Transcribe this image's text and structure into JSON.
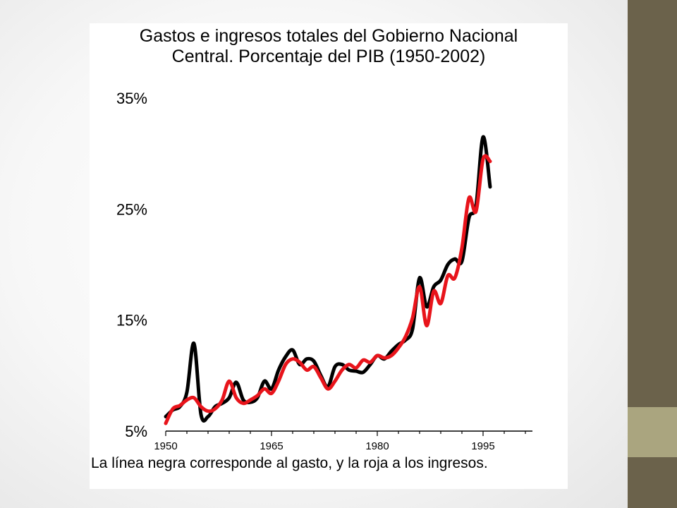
{
  "colors": {
    "sidebar": "#6b624b",
    "sidebar_accent": "#aaa57f",
    "gasto_line": "#000000",
    "ingresos_line": "#e8141b"
  },
  "chart_data": {
    "type": "line",
    "title": "Gastos e ingresos totales del Gobierno Nacional\nCentral.  Porcentaje del PIB (1950-2002)",
    "caption": "La línea negra corresponde al gasto, y la roja a los ingresos.",
    "xlabel": "",
    "ylabel": "",
    "xlim": [
      1950,
      2002
    ],
    "ylim": [
      5,
      35
    ],
    "x_ticks": [
      1950,
      1965,
      1980,
      1995
    ],
    "y_ticks": [
      {
        "value": 5,
        "label": "5%"
      },
      {
        "value": 15,
        "label": "15%"
      },
      {
        "value": 25,
        "label": "25%"
      },
      {
        "value": 35,
        "label": "35%"
      }
    ],
    "grid": false,
    "x": [
      1950,
      1951,
      1952,
      1953,
      1954,
      1955,
      1956,
      1957,
      1958,
      1959,
      1960,
      1961,
      1962,
      1963,
      1964,
      1965,
      1966,
      1967,
      1968,
      1969,
      1970,
      1971,
      1972,
      1973,
      1974,
      1975,
      1976,
      1977,
      1978,
      1979,
      1980,
      1981,
      1982,
      1983,
      1984,
      1985,
      1986,
      1987,
      1988,
      1989,
      1990,
      1991,
      1992,
      1993,
      1994,
      1995,
      1996,
      1997,
      1998,
      1999,
      2000,
      2001,
      2002
    ],
    "series": [
      {
        "color": "#000000",
        "values": [
          6.3,
          6.9,
          7.2,
          8.5,
          12.9,
          6.5,
          6.3,
          7.2,
          7.5,
          8.0,
          9.4,
          7.8,
          7.6,
          8.0,
          9.5,
          8.8,
          10.5,
          11.7,
          12.3,
          11.0,
          11.5,
          11.3,
          10.0,
          9.0,
          10.8,
          11.0,
          10.5,
          10.4,
          10.3,
          11.0,
          11.8,
          11.5,
          12.2,
          12.8,
          13.2,
          14.2,
          18.8,
          16.2,
          18.0,
          18.6,
          20.0,
          20.5,
          20.3,
          24.2,
          25.3,
          31.5,
          27.0,
          null,
          null,
          null,
          null,
          null,
          null
        ]
      },
      {
        "color": "#e8141b",
        "values": [
          5.7,
          7.0,
          7.3,
          7.8,
          8.0,
          7.2,
          6.8,
          7.0,
          7.8,
          9.5,
          8.0,
          7.5,
          7.8,
          8.2,
          8.8,
          8.4,
          9.5,
          11.0,
          11.5,
          11.2,
          10.5,
          10.8,
          9.8,
          8.8,
          9.5,
          10.5,
          11.0,
          10.7,
          11.4,
          11.2,
          11.8,
          11.6,
          11.8,
          12.5,
          13.5,
          15.2,
          18.0,
          14.5,
          17.6,
          16.5,
          19.0,
          18.8,
          21.5,
          26.0,
          24.8,
          29.5,
          29.3,
          null,
          null,
          null,
          null,
          null,
          null
        ]
      }
    ]
  }
}
